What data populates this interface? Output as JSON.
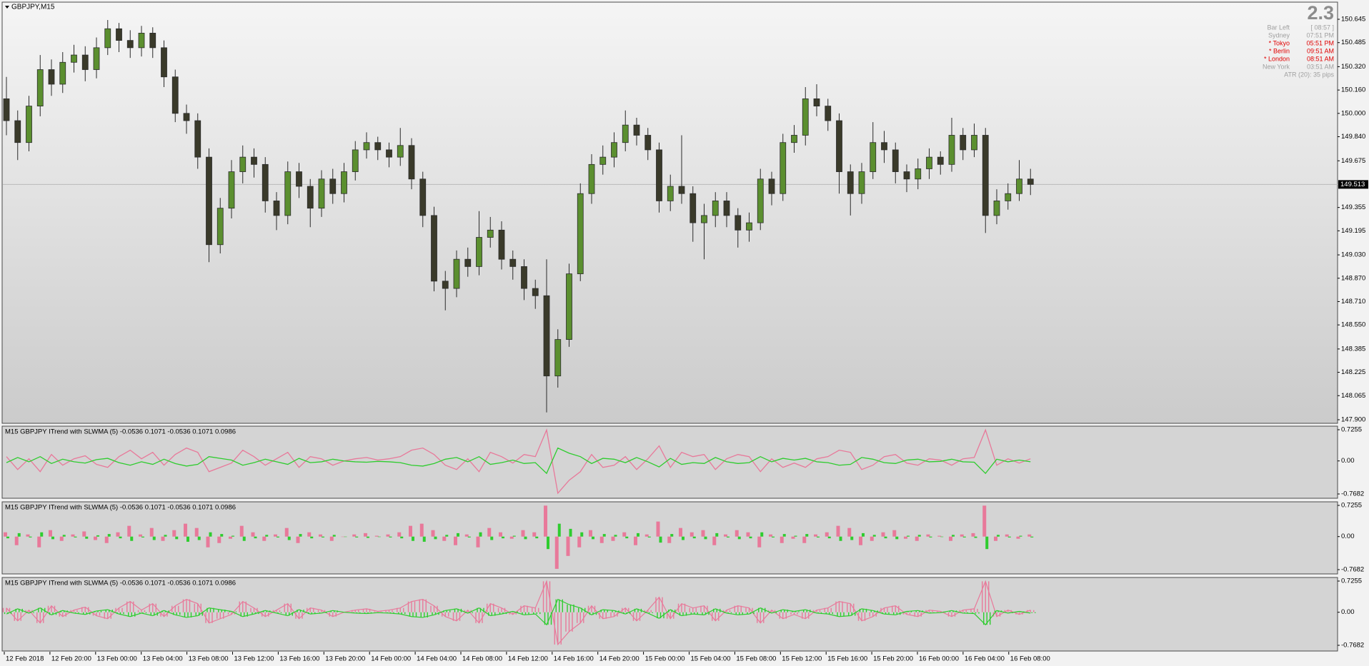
{
  "chart_data": [
    {
      "type": "candlestick",
      "title": "GBPJPY,M15",
      "open": [
        150.1,
        149.95,
        149.8,
        150.05,
        150.3,
        150.2,
        150.35,
        150.4,
        150.3,
        150.45,
        150.58,
        150.5,
        150.45,
        150.55,
        150.45,
        150.25,
        150.0,
        149.95,
        149.7,
        149.1,
        149.35,
        149.6,
        149.7,
        149.65,
        149.4,
        149.3,
        149.6,
        149.5,
        149.35,
        149.55,
        149.45,
        149.6,
        149.75,
        149.8,
        149.75,
        149.7,
        149.78,
        149.55,
        149.3,
        148.85,
        148.8,
        149.0,
        148.95,
        149.15,
        149.2,
        149.0,
        148.95,
        148.8,
        148.75,
        148.2,
        148.45,
        148.9,
        149.45,
        149.65,
        149.7,
        149.8,
        149.92,
        149.85,
        149.75,
        149.4,
        149.5,
        149.45,
        149.25,
        149.3,
        149.4,
        149.3,
        149.2,
        149.25,
        149.55,
        149.45,
        149.8,
        149.85,
        150.1,
        150.05,
        149.95,
        149.6,
        149.45,
        149.6,
        149.8,
        149.75,
        149.6,
        149.55,
        149.62,
        149.7,
        149.65,
        149.85,
        149.75,
        149.85,
        149.3,
        149.4,
        149.45,
        149.55
      ],
      "high": [
        150.25,
        150.02,
        150.12,
        150.4,
        150.37,
        150.42,
        150.47,
        150.46,
        150.52,
        150.64,
        150.62,
        150.57,
        150.6,
        150.59,
        150.5,
        150.3,
        150.06,
        150.0,
        149.76,
        149.42,
        149.68,
        149.78,
        149.76,
        149.7,
        149.46,
        149.67,
        149.66,
        149.55,
        149.61,
        149.62,
        149.66,
        149.81,
        149.87,
        149.84,
        149.8,
        149.9,
        149.83,
        149.6,
        149.36,
        148.92,
        149.06,
        149.08,
        149.33,
        149.29,
        149.26,
        149.06,
        149.0,
        148.86,
        149.0,
        148.52,
        148.97,
        149.52,
        149.72,
        149.78,
        149.87,
        150.02,
        149.97,
        149.9,
        149.8,
        149.58,
        149.85,
        149.5,
        149.38,
        149.46,
        149.46,
        149.35,
        149.32,
        149.62,
        149.6,
        149.86,
        149.92,
        150.18,
        150.2,
        150.1,
        150.0,
        149.65,
        149.66,
        149.94,
        149.88,
        149.8,
        149.65,
        149.69,
        149.76,
        149.74,
        149.97,
        149.9,
        149.93,
        149.9,
        149.48,
        149.52,
        149.68,
        149.62
      ],
      "low": [
        149.85,
        149.68,
        149.74,
        149.98,
        150.12,
        150.14,
        150.28,
        150.22,
        150.24,
        150.4,
        150.42,
        150.38,
        150.39,
        150.38,
        150.18,
        149.94,
        149.86,
        149.62,
        148.98,
        149.04,
        149.28,
        149.52,
        149.56,
        149.32,
        149.2,
        149.24,
        149.42,
        149.22,
        149.29,
        149.38,
        149.39,
        149.54,
        149.69,
        149.68,
        149.63,
        149.64,
        149.48,
        149.22,
        148.78,
        148.65,
        148.74,
        148.88,
        148.89,
        149.08,
        148.93,
        148.86,
        148.72,
        148.66,
        147.95,
        148.12,
        148.4,
        148.85,
        149.38,
        149.58,
        149.63,
        149.74,
        149.78,
        149.68,
        149.32,
        149.33,
        149.38,
        149.12,
        149.0,
        149.22,
        149.22,
        149.08,
        149.12,
        149.2,
        149.37,
        149.4,
        149.73,
        149.78,
        149.98,
        149.88,
        149.45,
        149.3,
        149.38,
        149.55,
        149.66,
        149.52,
        149.46,
        149.48,
        149.55,
        149.58,
        149.6,
        149.68,
        149.7,
        149.18,
        149.24,
        149.34,
        149.4,
        149.44
      ],
      "close": [
        149.95,
        149.8,
        150.05,
        150.3,
        150.2,
        150.35,
        150.4,
        150.3,
        150.45,
        150.58,
        150.5,
        150.45,
        150.55,
        150.45,
        150.25,
        150.0,
        149.95,
        149.7,
        149.1,
        149.35,
        149.6,
        149.7,
        149.65,
        149.4,
        149.3,
        149.6,
        149.5,
        149.35,
        149.55,
        149.45,
        149.6,
        149.75,
        149.8,
        149.75,
        149.7,
        149.78,
        149.55,
        149.3,
        148.85,
        148.8,
        149.0,
        148.95,
        149.15,
        149.2,
        149.0,
        148.95,
        148.8,
        148.75,
        148.2,
        148.45,
        148.9,
        149.45,
        149.65,
        149.7,
        149.8,
        149.92,
        149.85,
        149.75,
        149.4,
        149.5,
        149.45,
        149.25,
        149.3,
        149.4,
        149.3,
        149.2,
        149.25,
        149.55,
        149.45,
        149.8,
        149.85,
        150.1,
        150.05,
        149.95,
        149.6,
        149.45,
        149.6,
        149.8,
        149.75,
        149.6,
        149.55,
        149.62,
        149.7,
        149.65,
        149.85,
        149.75,
        149.85,
        149.3,
        149.4,
        149.45,
        149.55,
        149.513
      ],
      "up_color": "#5b8f2f",
      "down_color": "#3a3a2a",
      "wick_color": "#2b2b2b",
      "ylim": [
        147.9,
        150.645
      ],
      "yticks": [
        150.645,
        150.485,
        {
          "value": 150.32,
          "label": "150.320"
        },
        {
          "value": 150.16,
          "label": "150.160"
        },
        {
          "value": 150,
          "label": "150.000"
        },
        {
          "value": 149.84,
          "label": "149.840"
        },
        149.675,
        149.355,
        149.195,
        {
          "value": 149.03,
          "label": "149.030"
        },
        {
          "value": 148.87,
          "label": "148.870"
        },
        {
          "value": 148.71,
          "label": "148.710"
        },
        {
          "value": 148.55,
          "label": "148.550"
        },
        148.385,
        148.225,
        148.065,
        {
          "value": 147.9,
          "label": "147.900"
        }
      ],
      "current_price": 149.513,
      "x_labels": [
        "12 Feb 2018",
        "12 Feb 20:00",
        "13 Feb 00:00",
        "13 Feb 04:00",
        "13 Feb 08:00",
        "13 Feb 12:00",
        "13 Feb 16:00",
        "13 Feb 20:00",
        "14 Feb 00:00",
        "14 Feb 04:00",
        "14 Feb 08:00",
        "14 Feb 12:00",
        "14 Feb 16:00",
        "14 Feb 20:00",
        "15 Feb 00:00",
        "15 Feb 04:00",
        "15 Feb 08:00",
        "15 Feb 12:00",
        "15 Feb 16:00",
        "15 Feb 20:00",
        "16 Feb 00:00",
        "16 Feb 04:00",
        "16 Feb 08:00"
      ]
    },
    {
      "type": "line",
      "title": "M15 GBPJPY ITrend with SLWMA (5) -0.0536 0.1071 -0.0536 0.1071 0.0986",
      "series": [
        {
          "color": "#e8799a",
          "values": [
            0.1,
            -0.2,
            0.05,
            -0.25,
            0.15,
            -0.1,
            0.05,
            0.12,
            -0.08,
            -0.15,
            0.1,
            0.25,
            0.05,
            0.2,
            -0.1,
            0.15,
            0.3,
            0.2,
            -0.25,
            -0.15,
            -0.05,
            0.25,
            0.1,
            -0.1,
            0.05,
            0.2,
            -0.15,
            0.1,
            0.05,
            -0.1,
            0.0,
            0.05,
            0.08,
            0.02,
            0.05,
            0.1,
            0.25,
            0.3,
            0.15,
            -0.1,
            -0.2,
            0.05,
            -0.25,
            0.2,
            0.1,
            -0.05,
            0.15,
            0.1,
            0.72,
            -0.75,
            -0.45,
            -0.25,
            0.15,
            -0.15,
            -0.1,
            0.1,
            -0.2,
            0.05,
            0.35,
            -0.15,
            0.2,
            0.1,
            0.15,
            -0.2,
            0.05,
            0.15,
            0.1,
            -0.25,
            0.05,
            -0.15,
            -0.05,
            -0.15,
            0.05,
            0.1,
            0.25,
            0.2,
            -0.2,
            -0.1,
            0.1,
            0.15,
            -0.05,
            -0.1,
            0.05,
            0.02,
            -0.1,
            0.05,
            0.08,
            0.72,
            -0.1,
            0.05,
            -0.05,
            0.05
          ]
        },
        {
          "color": "#2ecc2e",
          "values": [
            -0.04,
            0.08,
            -0.02,
            0.1,
            -0.06,
            0.04,
            -0.02,
            -0.05,
            0.03,
            0.06,
            -0.04,
            -0.1,
            -0.02,
            -0.08,
            0.04,
            -0.06,
            -0.12,
            -0.08,
            0.1,
            0.06,
            0.02,
            -0.1,
            -0.04,
            0.04,
            -0.02,
            -0.08,
            0.06,
            -0.04,
            -0.02,
            0.04,
            0.0,
            -0.02,
            -0.03,
            -0.01,
            -0.02,
            -0.04,
            -0.1,
            -0.12,
            -0.06,
            0.04,
            0.08,
            -0.02,
            0.1,
            -0.08,
            -0.04,
            0.02,
            -0.06,
            -0.04,
            -0.29,
            0.3,
            0.18,
            0.1,
            -0.06,
            0.06,
            0.04,
            -0.04,
            0.08,
            -0.02,
            -0.14,
            0.06,
            -0.08,
            -0.04,
            -0.06,
            0.08,
            -0.02,
            -0.06,
            -0.04,
            0.1,
            -0.02,
            0.06,
            0.02,
            0.06,
            -0.02,
            -0.04,
            -0.1,
            -0.08,
            0.08,
            0.04,
            -0.04,
            -0.06,
            0.02,
            0.04,
            -0.02,
            -0.01,
            0.04,
            -0.02,
            -0.03,
            -0.29,
            0.04,
            -0.02,
            0.02,
            -0.02
          ]
        }
      ],
      "ylim": [
        -0.7682,
        0.7255
      ],
      "yticks": [
        0.7255,
        {
          "value": 0,
          "label": "0.00"
        },
        -0.7682
      ]
    },
    {
      "type": "bar",
      "title": "M15 GBPJPY ITrend with SLWMA (5) -0.0536 0.1071 -0.0536 0.1071 0.0986",
      "series": [
        {
          "color": "#e8799a",
          "values": [
            0.1,
            -0.2,
            0.05,
            -0.25,
            0.15,
            -0.1,
            0.05,
            0.12,
            -0.08,
            -0.15,
            0.1,
            0.25,
            0.05,
            0.2,
            -0.1,
            0.15,
            0.3,
            0.2,
            -0.25,
            -0.15,
            -0.05,
            0.25,
            0.1,
            -0.1,
            0.05,
            0.2,
            -0.15,
            0.1,
            0.05,
            -0.1,
            0.0,
            0.05,
            0.08,
            0.02,
            0.05,
            0.1,
            0.25,
            0.3,
            0.15,
            -0.1,
            -0.2,
            0.05,
            -0.25,
            0.2,
            0.1,
            -0.05,
            0.15,
            0.1,
            0.72,
            -0.75,
            -0.45,
            -0.25,
            0.15,
            -0.15,
            -0.1,
            0.1,
            -0.2,
            0.05,
            0.35,
            -0.15,
            0.2,
            0.1,
            0.15,
            -0.2,
            0.05,
            0.15,
            0.1,
            -0.25,
            0.05,
            -0.15,
            -0.05,
            -0.15,
            0.05,
            0.1,
            0.25,
            0.2,
            -0.2,
            -0.1,
            0.1,
            0.15,
            -0.05,
            -0.1,
            0.05,
            0.02,
            -0.1,
            0.05,
            0.08,
            0.72,
            -0.1,
            0.05,
            -0.05,
            0.05
          ]
        },
        {
          "color": "#2ecc2e",
          "values": [
            -0.04,
            0.08,
            -0.02,
            0.1,
            -0.06,
            0.04,
            -0.02,
            -0.05,
            0.03,
            0.06,
            -0.04,
            -0.1,
            -0.02,
            -0.08,
            0.04,
            -0.06,
            -0.12,
            -0.08,
            0.1,
            0.06,
            0.02,
            -0.1,
            -0.04,
            0.04,
            -0.02,
            -0.08,
            0.06,
            -0.04,
            -0.02,
            0.04,
            0.0,
            -0.02,
            -0.03,
            -0.01,
            -0.02,
            -0.04,
            -0.1,
            -0.12,
            -0.06,
            0.04,
            0.08,
            -0.02,
            0.1,
            -0.08,
            -0.04,
            0.02,
            -0.06,
            -0.04,
            -0.29,
            0.3,
            0.18,
            0.1,
            -0.06,
            0.06,
            0.04,
            -0.04,
            0.08,
            -0.02,
            -0.14,
            0.06,
            -0.08,
            -0.04,
            -0.06,
            0.08,
            -0.02,
            -0.06,
            -0.04,
            0.1,
            -0.02,
            0.06,
            0.02,
            0.06,
            -0.02,
            -0.04,
            -0.1,
            -0.08,
            0.08,
            0.04,
            -0.04,
            -0.06,
            0.02,
            0.04,
            -0.02,
            -0.01,
            0.04,
            -0.02,
            -0.03,
            -0.29,
            0.04,
            -0.02,
            0.02,
            -0.02
          ]
        }
      ],
      "ylim": [
        -0.7682,
        0.7255
      ],
      "yticks": [
        0.7255,
        {
          "value": 0,
          "label": "0.00"
        },
        -0.7682
      ]
    },
    {
      "type": "area",
      "title": "M15 GBPJPY ITrend with SLWMA (5) -0.0536 0.1071 -0.0536 0.1071 0.0986",
      "series": [
        {
          "color": "#e8799a",
          "values": [
            0.1,
            -0.2,
            0.05,
            -0.25,
            0.15,
            -0.1,
            0.05,
            0.12,
            -0.08,
            -0.15,
            0.1,
            0.25,
            0.05,
            0.2,
            -0.1,
            0.15,
            0.3,
            0.2,
            -0.25,
            -0.15,
            -0.05,
            0.25,
            0.1,
            -0.1,
            0.05,
            0.2,
            -0.15,
            0.1,
            0.05,
            -0.1,
            0.0,
            0.05,
            0.08,
            0.02,
            0.05,
            0.1,
            0.25,
            0.3,
            0.15,
            -0.1,
            -0.2,
            0.05,
            -0.25,
            0.2,
            0.1,
            -0.05,
            0.15,
            0.1,
            0.72,
            -0.75,
            -0.45,
            -0.25,
            0.15,
            -0.15,
            -0.1,
            0.1,
            -0.2,
            0.05,
            0.35,
            -0.15,
            0.2,
            0.1,
            0.15,
            -0.2,
            0.05,
            0.15,
            0.1,
            -0.25,
            0.05,
            -0.15,
            -0.05,
            -0.15,
            0.05,
            0.1,
            0.25,
            0.2,
            -0.2,
            -0.1,
            0.1,
            0.15,
            -0.05,
            -0.1,
            0.05,
            0.02,
            -0.1,
            0.05,
            0.08,
            0.72,
            -0.1,
            0.05,
            -0.05,
            0.05
          ]
        },
        {
          "color": "#2ecc2e",
          "values": [
            -0.04,
            0.08,
            -0.02,
            0.1,
            -0.06,
            0.04,
            -0.02,
            -0.05,
            0.03,
            0.06,
            -0.04,
            -0.1,
            -0.02,
            -0.08,
            0.04,
            -0.06,
            -0.12,
            -0.08,
            0.1,
            0.06,
            0.02,
            -0.1,
            -0.04,
            0.04,
            -0.02,
            -0.08,
            0.06,
            -0.04,
            -0.02,
            0.04,
            0.0,
            -0.02,
            -0.03,
            -0.01,
            -0.02,
            -0.04,
            -0.1,
            -0.12,
            -0.06,
            0.04,
            0.08,
            -0.02,
            0.1,
            -0.08,
            -0.04,
            0.02,
            -0.06,
            -0.04,
            -0.29,
            0.3,
            0.18,
            0.1,
            -0.06,
            0.06,
            0.04,
            -0.04,
            0.08,
            -0.02,
            -0.14,
            0.06,
            -0.08,
            -0.04,
            -0.06,
            0.08,
            -0.02,
            -0.06,
            -0.04,
            0.1,
            -0.02,
            0.06,
            0.02,
            0.06,
            -0.02,
            -0.04,
            -0.1,
            -0.08,
            0.08,
            0.04,
            -0.04,
            -0.06,
            0.02,
            0.04,
            -0.02,
            -0.01,
            0.04,
            -0.02,
            -0.03,
            -0.29,
            0.04,
            -0.02,
            0.02,
            -0.02
          ]
        }
      ],
      "ylim": [
        -0.7682,
        0.7255
      ],
      "yticks": [
        0.7255,
        {
          "value": 0,
          "label": "0.00"
        },
        -0.7682
      ]
    }
  ],
  "info_panel": {
    "spread": "2.3",
    "rows": [
      {
        "label": "Bar Left",
        "value": "[ 08:57 ]",
        "color": "#a0a0a0"
      },
      {
        "label": "Sydney",
        "value": "07:51 PM",
        "color": "#a0a0a0"
      },
      {
        "label": "* Tokyo",
        "value": "05:51 PM",
        "color": "#e00000"
      },
      {
        "label": "* Berlin",
        "value": "09:51 AM",
        "color": "#e00000"
      },
      {
        "label": "* London",
        "value": "08:51 AM",
        "color": "#e00000"
      },
      {
        "label": "New York",
        "value": "03:51 AM",
        "color": "#a0a0a0"
      }
    ],
    "atr": "ATR (20): 35 pips"
  }
}
